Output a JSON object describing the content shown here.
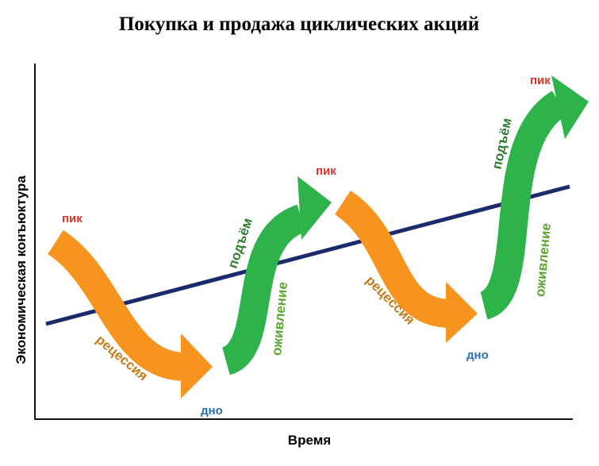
{
  "header": {
    "title": "Покупка и продажа циклических акций"
  },
  "axes": {
    "y_label": "Экономическая конъюктура",
    "x_label": "Время"
  },
  "labels": {
    "peaks": [
      "пик",
      "пик",
      "пик"
    ],
    "recessions": [
      "рецессия",
      "рецессия"
    ],
    "bottoms": [
      "дно",
      "дно"
    ],
    "rises": [
      "подъём",
      "подъём"
    ],
    "recoveries": [
      "оживление",
      "оживление"
    ]
  }
}
